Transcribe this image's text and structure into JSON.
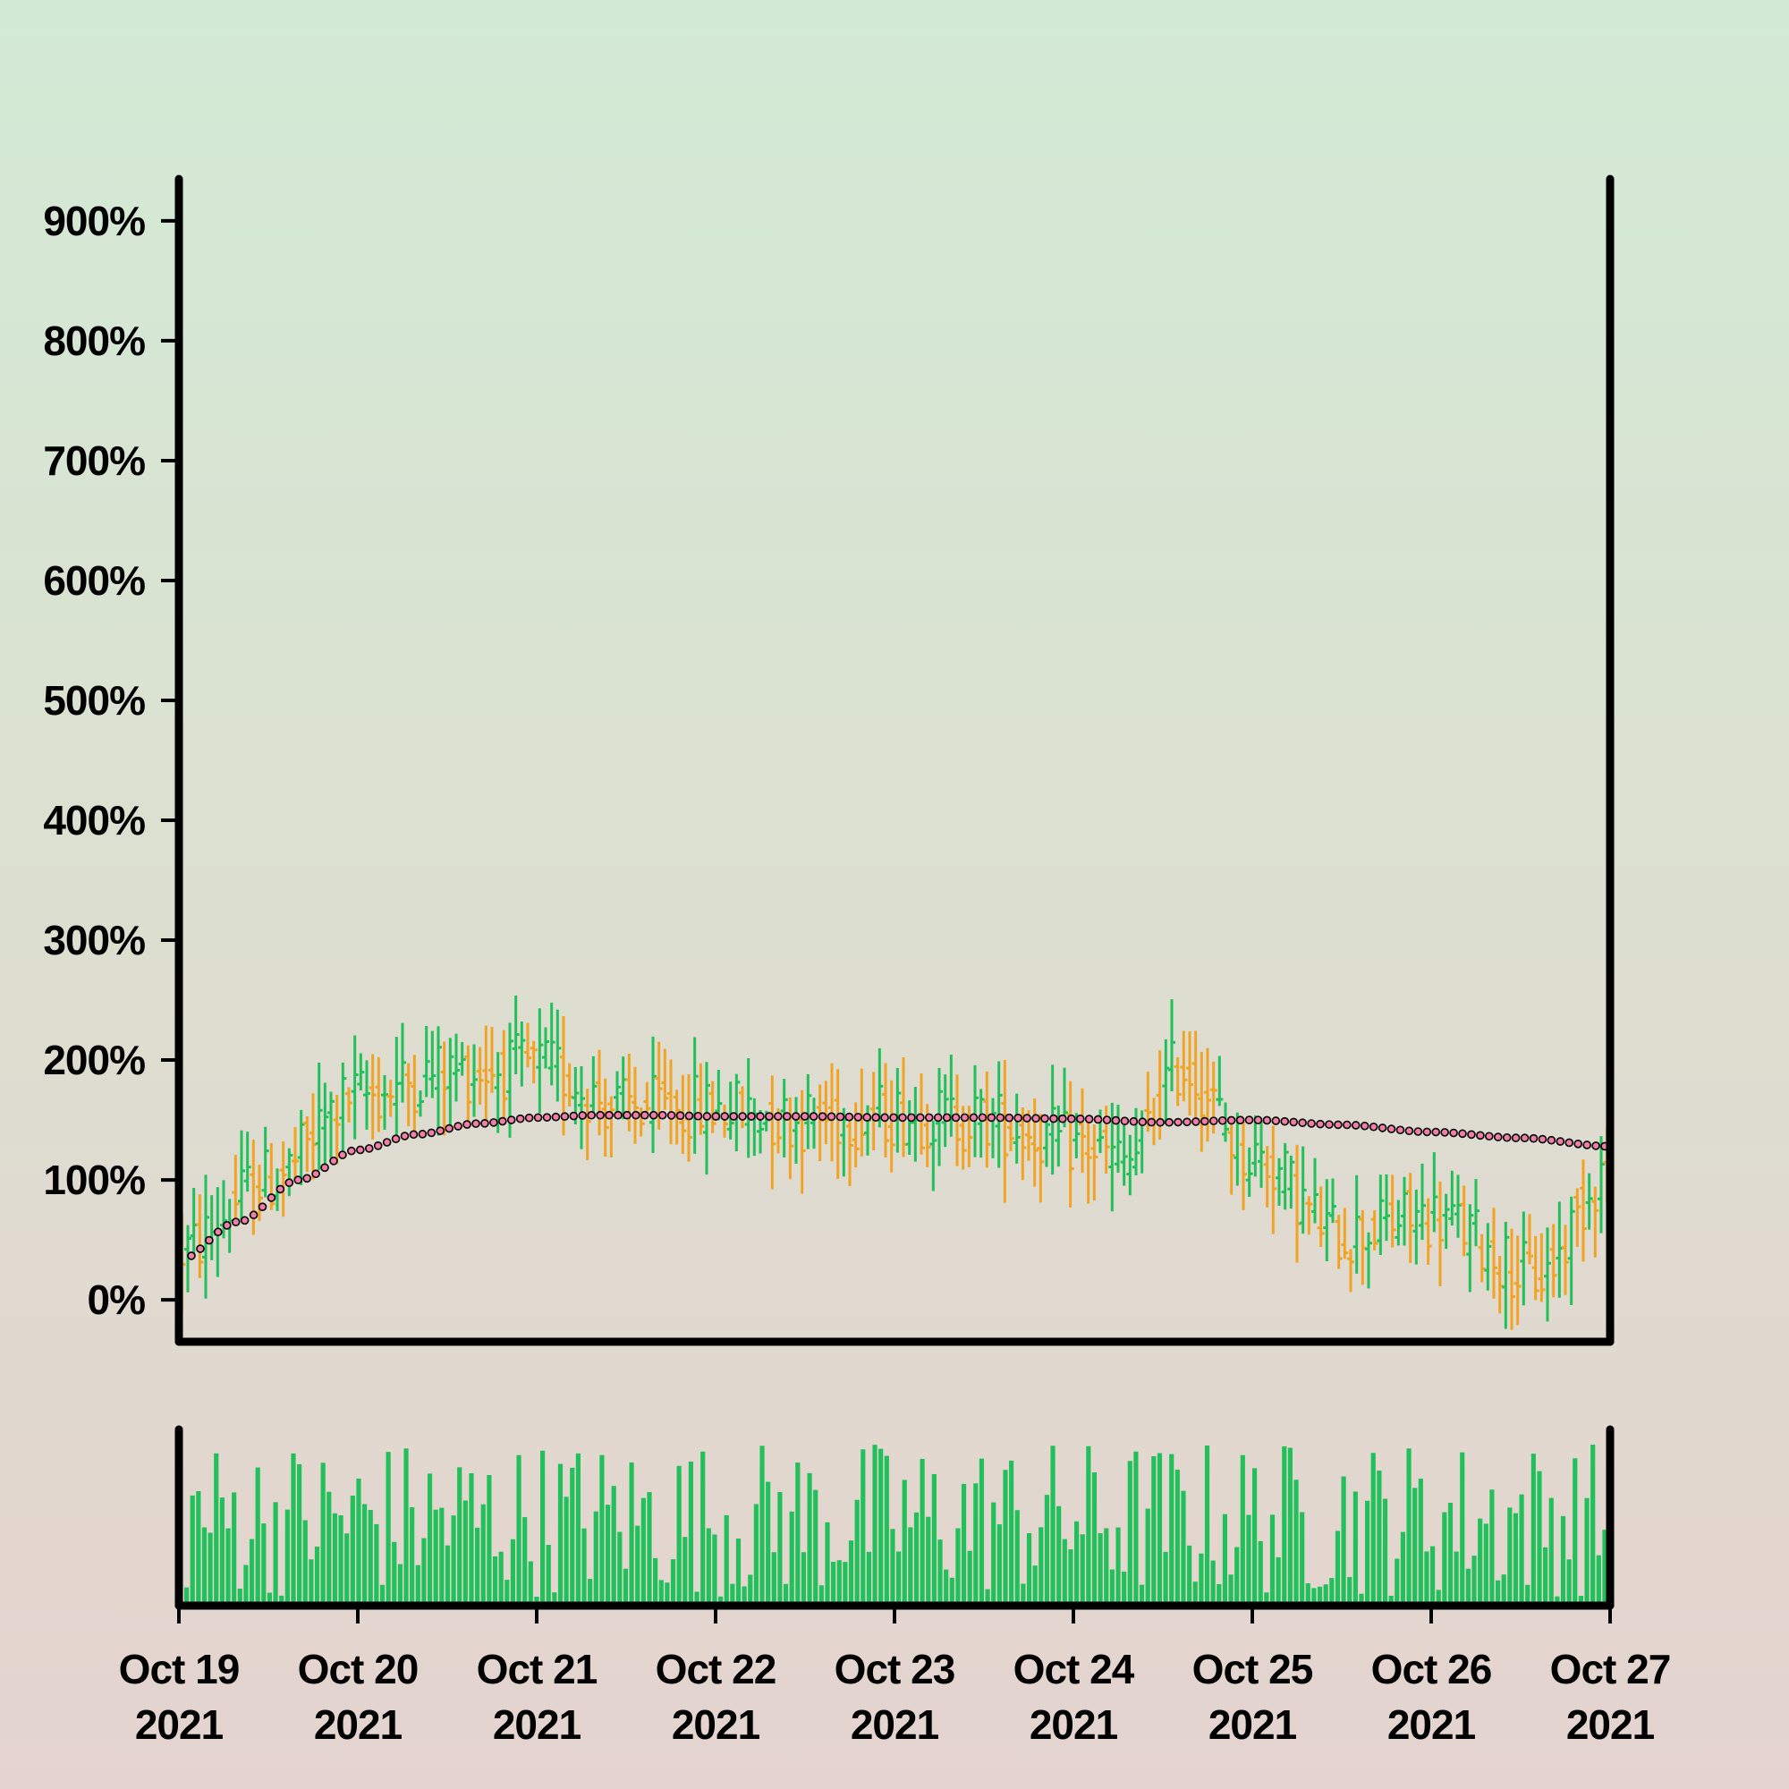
{
  "chart_data": {
    "type": "ohlc",
    "title": "",
    "xlabel": "",
    "ylabel": "",
    "x_start": "2021-10-19",
    "x_end": "2021-10-27",
    "bars_per_day": 30,
    "ylim": [
      -35,
      935
    ],
    "yticks": [
      {
        "value": 0,
        "label": "0%"
      },
      {
        "value": 100,
        "label": "100%"
      },
      {
        "value": 200,
        "label": "200%"
      },
      {
        "value": 300,
        "label": "300%"
      },
      {
        "value": 400,
        "label": "400%"
      },
      {
        "value": 500,
        "label": "500%"
      },
      {
        "value": 600,
        "label": "600%"
      },
      {
        "value": 700,
        "label": "700%"
      },
      {
        "value": 800,
        "label": "800%"
      },
      {
        "value": 900,
        "label": "900%"
      }
    ],
    "xticks": [
      {
        "date": "2021-10-19",
        "line1": "Oct 19",
        "line2": "2021"
      },
      {
        "date": "2021-10-20",
        "line1": "Oct 20",
        "line2": "2021"
      },
      {
        "date": "2021-10-21",
        "line1": "Oct 21",
        "line2": "2021"
      },
      {
        "date": "2021-10-22",
        "line1": "Oct 22",
        "line2": "2021"
      },
      {
        "date": "2021-10-23",
        "line1": "Oct 23",
        "line2": "2021"
      },
      {
        "date": "2021-10-24",
        "line1": "Oct 24",
        "line2": "2021"
      },
      {
        "date": "2021-10-25",
        "line1": "Oct 25",
        "line2": "2021"
      },
      {
        "date": "2021-10-26",
        "line1": "Oct 26",
        "line2": "2021"
      },
      {
        "date": "2021-10-27",
        "line1": "Oct 27",
        "line2": "2021"
      }
    ],
    "price_trend": [
      {
        "date": "2021-10-19",
        "value": 40
      },
      {
        "date": "2021-10-19.5",
        "value": 100
      },
      {
        "date": "2021-10-20",
        "value": 170
      },
      {
        "date": "2021-10-20.5",
        "value": 190
      },
      {
        "date": "2021-10-21",
        "value": 195
      },
      {
        "date": "2021-10-21.5",
        "value": 160
      },
      {
        "date": "2021-10-22",
        "value": 160
      },
      {
        "date": "2021-10-22.5",
        "value": 150
      },
      {
        "date": "2021-10-23",
        "value": 155
      },
      {
        "date": "2021-10-23.5",
        "value": 150
      },
      {
        "date": "2021-10-24",
        "value": 130
      },
      {
        "date": "2021-10-24.3",
        "value": 115
      },
      {
        "date": "2021-10-24.6",
        "value": 195
      },
      {
        "date": "2021-10-25",
        "value": 120
      },
      {
        "date": "2021-10-25.5",
        "value": 55
      },
      {
        "date": "2021-10-26",
        "value": 70
      },
      {
        "date": "2021-10-26.6",
        "value": 20
      },
      {
        "date": "2021-10-27",
        "value": 110
      }
    ],
    "moving_average": [
      {
        "date": "2021-10-19",
        "value": 33
      },
      {
        "date": "2021-10-19.33",
        "value": 65
      },
      {
        "date": "2021-10-19.67",
        "value": 100
      },
      {
        "date": "2021-10-20",
        "value": 125
      },
      {
        "date": "2021-10-20.33",
        "value": 138
      },
      {
        "date": "2021-10-20.67",
        "value": 147
      },
      {
        "date": "2021-10-21",
        "value": 152
      },
      {
        "date": "2021-10-21.33",
        "value": 154
      },
      {
        "date": "2021-10-21.67",
        "value": 154
      },
      {
        "date": "2021-10-22",
        "value": 153
      },
      {
        "date": "2021-10-22.5",
        "value": 153
      },
      {
        "date": "2021-10-23",
        "value": 152
      },
      {
        "date": "2021-10-23.5",
        "value": 152
      },
      {
        "date": "2021-10-24",
        "value": 151
      },
      {
        "date": "2021-10-24.5",
        "value": 148
      },
      {
        "date": "2021-10-25",
        "value": 150
      },
      {
        "date": "2021-10-25.5",
        "value": 146
      },
      {
        "date": "2021-10-26",
        "value": 140
      },
      {
        "date": "2021-10-26.5",
        "value": 135
      },
      {
        "date": "2021-10-27",
        "value": 128
      }
    ],
    "volume_level_range": [
      0.05,
      0.96
    ],
    "colors": {
      "up": "#22c05a",
      "down": "#f0a325",
      "volume": "#22c05a",
      "ma_marker": "#f07fa8",
      "axis": "#000000",
      "background_top": "#d3ebd6",
      "background_bottom": "#e5d3cf"
    },
    "grid": false,
    "legend": "none"
  }
}
